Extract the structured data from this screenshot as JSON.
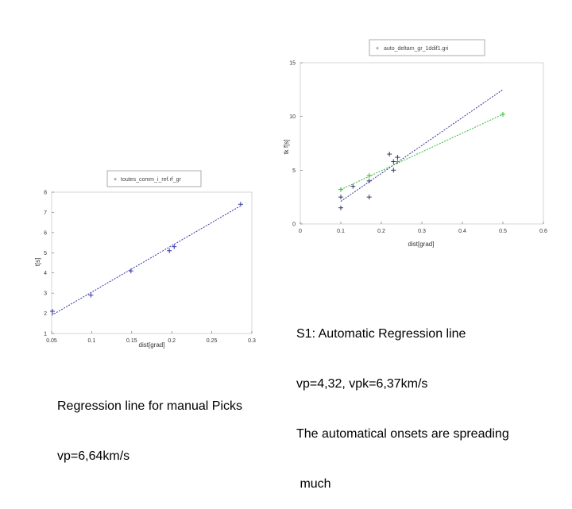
{
  "chart_data": [
    {
      "id": "manual",
      "type": "scatter",
      "title": "",
      "xlabel": "dist[grad]",
      "ylabel": "t[s]",
      "legend": "toutes_comm_i_ref.rf_gr",
      "legend_position": "top",
      "xlim": [
        0.05,
        0.3
      ],
      "ylim": [
        1,
        8
      ],
      "xticks": [
        "0.05",
        "0.1",
        "0.15",
        "0.2",
        "0.25",
        "0.3"
      ],
      "yticks": [
        "1",
        "2",
        "3",
        "4",
        "5",
        "6",
        "7",
        "8"
      ],
      "series": [
        {
          "name": "toutes_comm_i_ref.rf_gr",
          "marker": "+",
          "color": "#3333aa",
          "x": [
            0.051,
            0.099,
            0.149,
            0.197,
            0.203,
            0.286
          ],
          "y": [
            2.1,
            2.9,
            4.1,
            5.1,
            5.3,
            7.4
          ]
        },
        {
          "name": "regression",
          "line": true,
          "color": "#3333aa",
          "x": [
            0.05,
            0.285
          ],
          "y": [
            1.9,
            7.3
          ]
        }
      ]
    },
    {
      "id": "automatic",
      "type": "scatter",
      "title": "",
      "xlabel": "dist[grad]",
      "ylabel": "tk f[s]",
      "legend": "auto_deltam_gr_1ddif1.gri",
      "legend_position": "top",
      "xlim": [
        0,
        0.6
      ],
      "ylim": [
        0,
        15
      ],
      "xticks": [
        "0",
        "0.1",
        "0.2",
        "0.3",
        "0.4",
        "0.5",
        "0.6"
      ],
      "yticks": [
        "0",
        "5",
        "10",
        "15"
      ],
      "series": [
        {
          "name": "auto_deltam_gr_1ddif1.gri",
          "marker": "+",
          "color": "#333366",
          "x": [
            0.1,
            0.1,
            0.13,
            0.17,
            0.17,
            0.22,
            0.23,
            0.23,
            0.24
          ],
          "y": [
            2.5,
            1.5,
            3.5,
            2.5,
            4.0,
            6.5,
            5.0,
            5.8,
            6.2
          ]
        },
        {
          "name": "vp",
          "line": true,
          "color": "#333399",
          "x": [
            0.1,
            0.5
          ],
          "y": [
            2.1,
            12.5
          ]
        },
        {
          "name": "vpk",
          "line": true,
          "color": "#33bb33",
          "x": [
            0.1,
            0.5
          ],
          "y": [
            3.2,
            10.2
          ]
        },
        {
          "name": "vpk points",
          "marker": "+",
          "color": "#33bb33",
          "x": [
            0.1,
            0.17,
            0.24,
            0.5
          ],
          "y": [
            3.2,
            4.5,
            5.8,
            10.2
          ]
        }
      ]
    }
  ],
  "captions": {
    "automatic_lines": [
      "S1: Automatic Regression line",
      "vp=4,32, vpk=6,37km/s",
      "The automatical onsets are spreading",
      " much"
    ],
    "manual_lines": [
      "Regression line for manual Picks",
      "vp=6,64km/s"
    ]
  }
}
